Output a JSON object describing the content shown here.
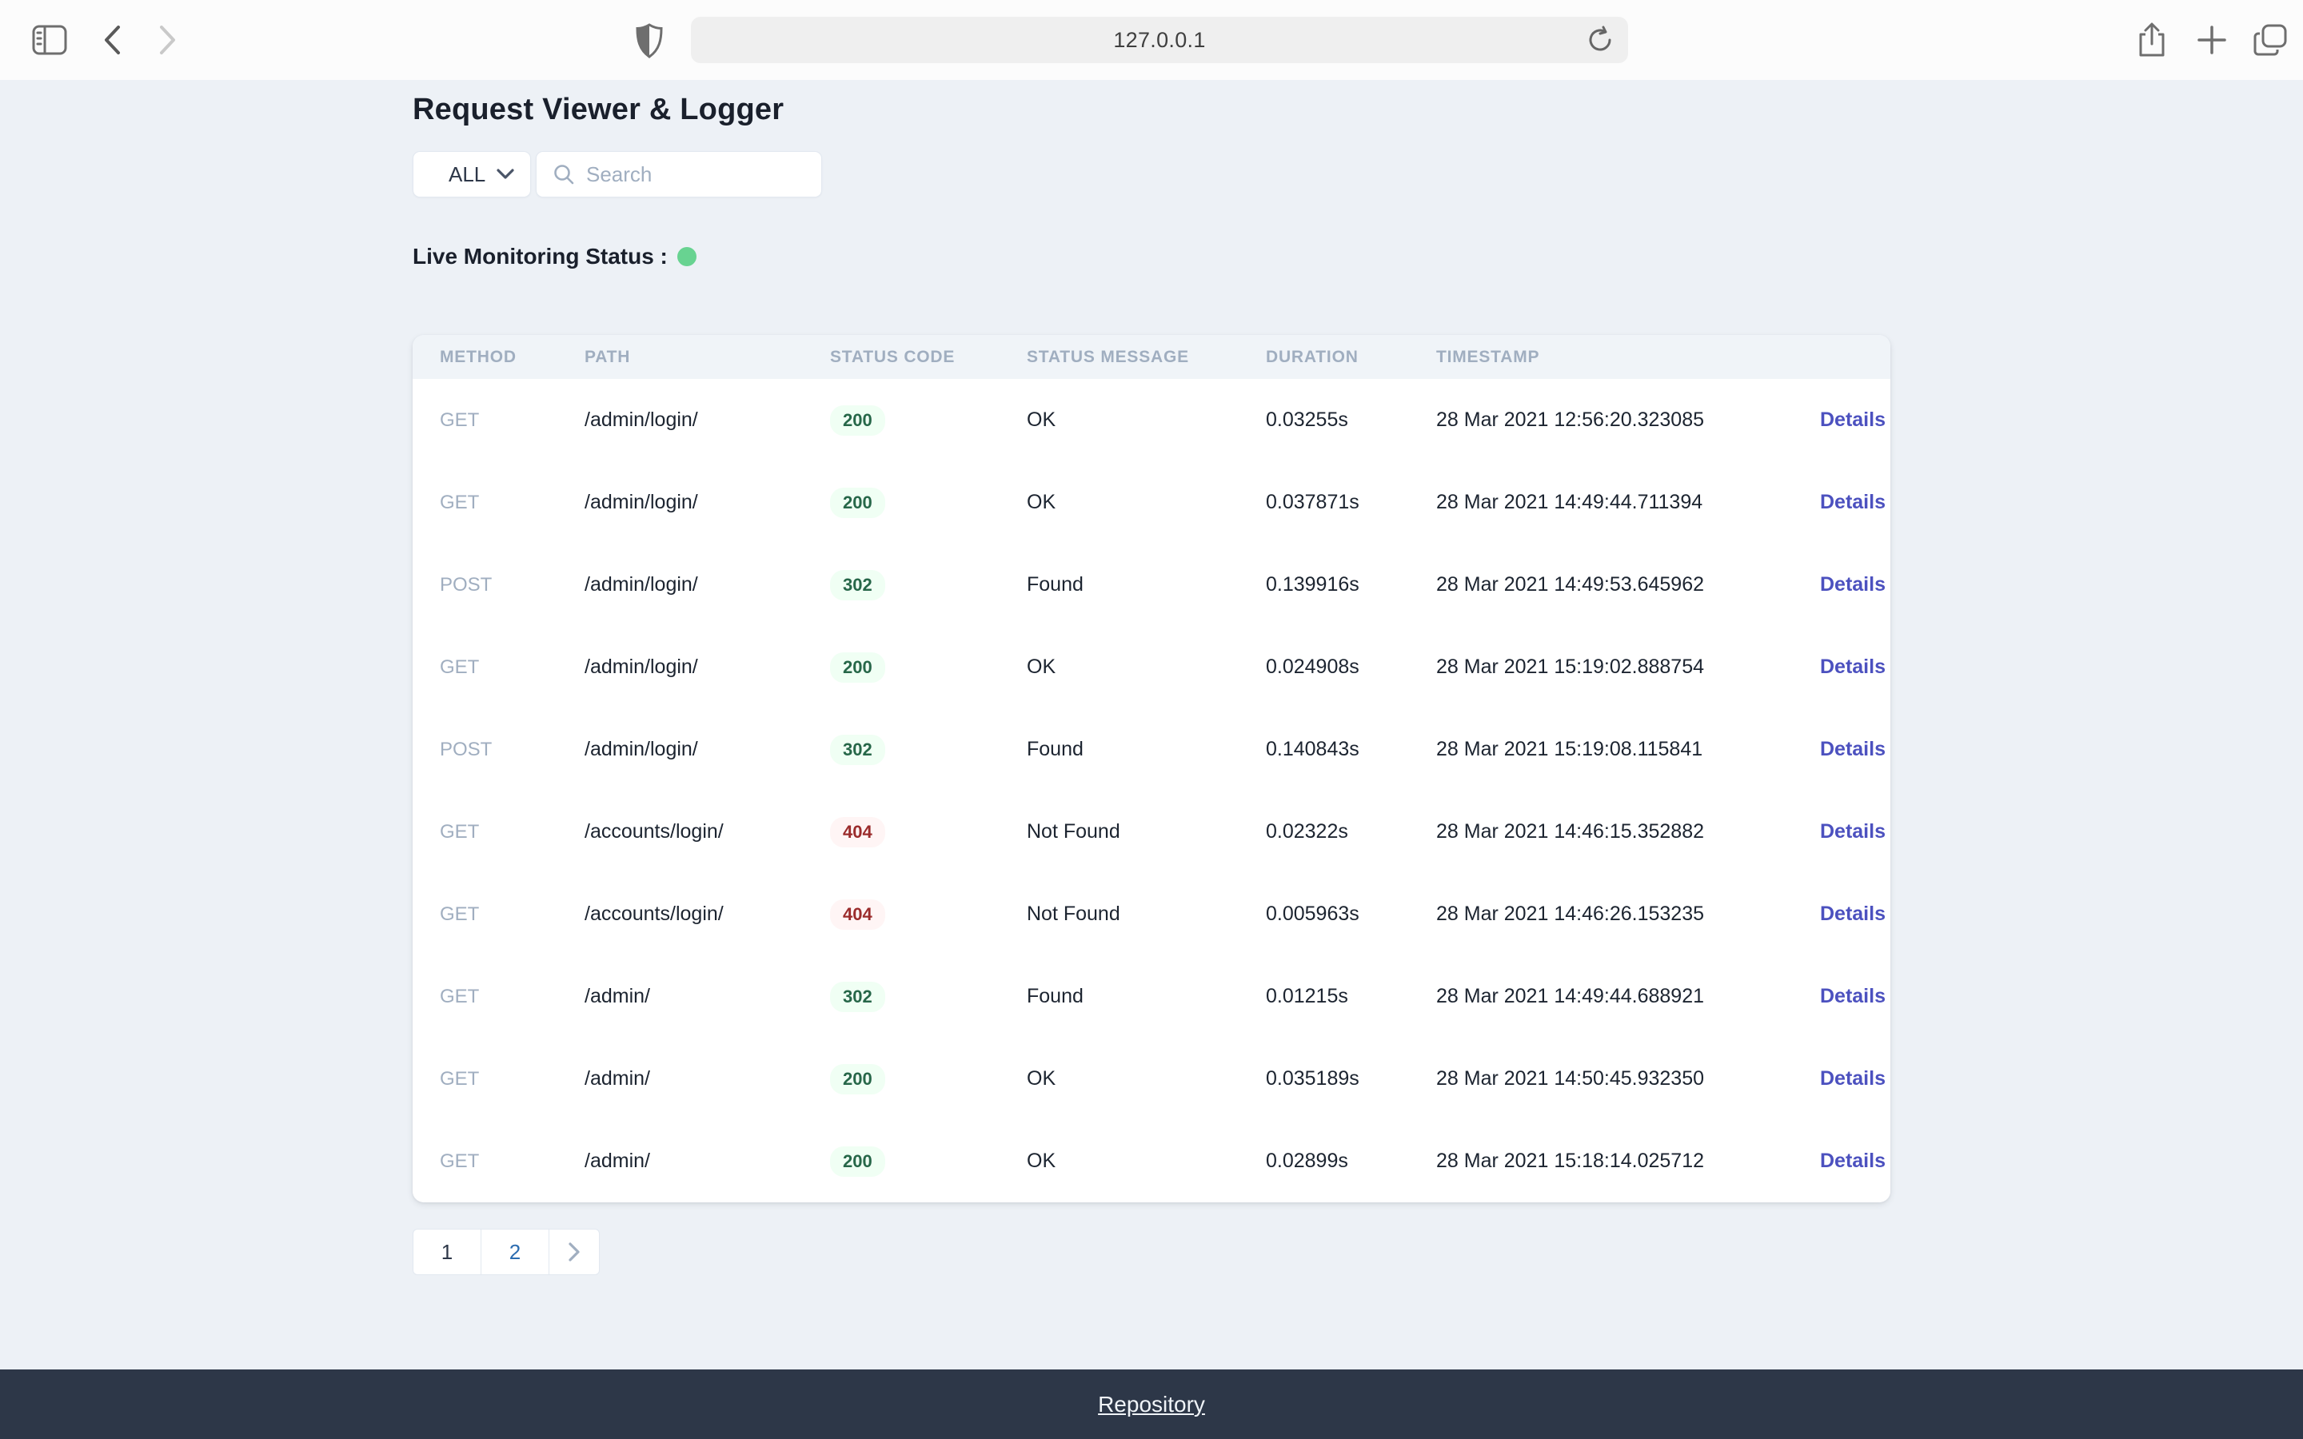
{
  "browser": {
    "url": "127.0.0.1",
    "icons": [
      "sidebar-toggle-icon",
      "back-icon",
      "forward-icon",
      "privacy-shield-icon",
      "reload-icon",
      "share-icon",
      "new-tab-icon",
      "tab-overview-icon"
    ]
  },
  "page": {
    "title": "Request Viewer & Logger",
    "filter": {
      "selected": "ALL"
    },
    "search": {
      "placeholder": "Search"
    },
    "status_line": {
      "label": "Live Monitoring Status :"
    },
    "table": {
      "headers": [
        "METHOD",
        "PATH",
        "STATUS CODE",
        "STATUS MESSAGE",
        "DURATION",
        "TIMESTAMP"
      ],
      "details_label": "Details",
      "rows": [
        {
          "method": "GET",
          "path": "/admin/login/",
          "status_code": "200",
          "status_type": "success",
          "status_message": "OK",
          "duration": "0.03255s",
          "timestamp": "28 Mar 2021 12:56:20.323085"
        },
        {
          "method": "GET",
          "path": "/admin/login/",
          "status_code": "200",
          "status_type": "success",
          "status_message": "OK",
          "duration": "0.037871s",
          "timestamp": "28 Mar 2021 14:49:44.711394"
        },
        {
          "method": "POST",
          "path": "/admin/login/",
          "status_code": "302",
          "status_type": "success",
          "status_message": "Found",
          "duration": "0.139916s",
          "timestamp": "28 Mar 2021 14:49:53.645962"
        },
        {
          "method": "GET",
          "path": "/admin/login/",
          "status_code": "200",
          "status_type": "success",
          "status_message": "OK",
          "duration": "0.024908s",
          "timestamp": "28 Mar 2021 15:19:02.888754"
        },
        {
          "method": "POST",
          "path": "/admin/login/",
          "status_code": "302",
          "status_type": "success",
          "status_message": "Found",
          "duration": "0.140843s",
          "timestamp": "28 Mar 2021 15:19:08.115841"
        },
        {
          "method": "GET",
          "path": "/accounts/login/",
          "status_code": "404",
          "status_type": "error",
          "status_message": "Not Found",
          "duration": "0.02322s",
          "timestamp": "28 Mar 2021 14:46:15.352882"
        },
        {
          "method": "GET",
          "path": "/accounts/login/",
          "status_code": "404",
          "status_type": "error",
          "status_message": "Not Found",
          "duration": "0.005963s",
          "timestamp": "28 Mar 2021 14:46:26.153235"
        },
        {
          "method": "GET",
          "path": "/admin/",
          "status_code": "302",
          "status_type": "success",
          "status_message": "Found",
          "duration": "0.01215s",
          "timestamp": "28 Mar 2021 14:49:44.688921"
        },
        {
          "method": "GET",
          "path": "/admin/",
          "status_code": "200",
          "status_type": "success",
          "status_message": "OK",
          "duration": "0.035189s",
          "timestamp": "28 Mar 2021 14:50:45.932350"
        },
        {
          "method": "GET",
          "path": "/admin/",
          "status_code": "200",
          "status_type": "success",
          "status_message": "OK",
          "duration": "0.02899s",
          "timestamp": "28 Mar 2021 15:18:14.025712"
        }
      ]
    },
    "pagination": {
      "pages": [
        {
          "label": "1",
          "current": true
        },
        {
          "label": "2",
          "current": false
        }
      ]
    }
  },
  "footer": {
    "link_label": "Repository"
  },
  "colors": {
    "page_bg": "#edf1f6",
    "card_header_bg": "#f0f4f8",
    "success_text": "#276749",
    "success_bg": "#f0fff4",
    "error_text": "#9b2c2c",
    "error_bg": "#fff5f5",
    "details_link": "#4c51bf",
    "status_dot": "#68d391",
    "pagination_link": "#2b6cb0",
    "footer_bg": "#2d3748"
  }
}
